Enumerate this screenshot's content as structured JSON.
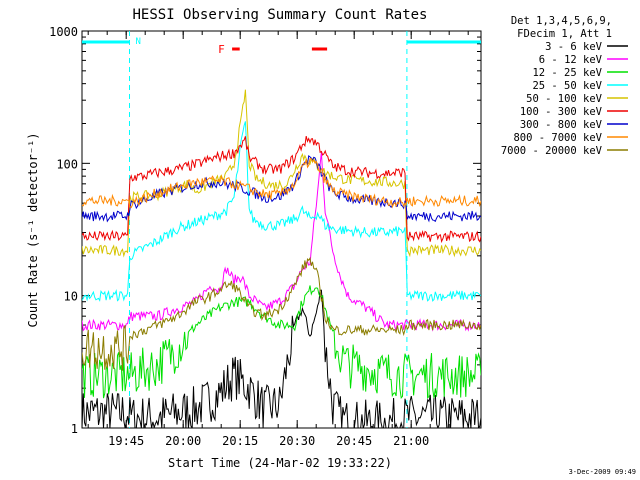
{
  "chart_data": {
    "type": "line",
    "title": "HESSI Observing Summary Count Rates",
    "xlabel": "Start Time (24-Mar-02 19:33:22)",
    "ylabel": "Count Rate (s⁻¹ detector⁻¹)",
    "yscale": "log",
    "ylim": [
      1,
      1000
    ],
    "xlim": [
      0,
      105
    ],
    "x_units": "minutes after 19:33:22",
    "x_tick_labels": [
      "19:45",
      "20:00",
      "20:15",
      "20:30",
      "20:45",
      "21:00"
    ],
    "x_tick_minutes": [
      11.63,
      26.63,
      41.63,
      56.63,
      71.63,
      86.63
    ],
    "y_tick_labels": [
      "1",
      "10",
      "100",
      "1000"
    ],
    "legend_header": [
      "Det 1,3,4,5,6,9,",
      "FDecim 1, Att 1"
    ],
    "legend_position": "right",
    "annotations": {
      "night_label": "N",
      "flare_label": "F",
      "date_stamp": "3-Dec-2009 09:49"
    },
    "night_intervals": [
      [
        0,
        12.5
      ],
      [
        85.5,
        105
      ]
    ],
    "flare_bars": [
      [
        39.5,
        41.5
      ],
      [
        60.5,
        64.5
      ]
    ],
    "series": [
      {
        "name": "3 - 6 keV",
        "color": "#000000",
        "x": [
          0,
          12,
          12.6,
          20,
          30,
          36,
          40,
          44,
          48,
          52,
          54,
          56,
          58,
          60,
          62,
          63,
          64,
          66,
          68,
          70,
          80,
          86,
          100,
          105
        ],
        "y": [
          1.3,
          1.3,
          1.2,
          1.2,
          1.4,
          1.8,
          2.5,
          2,
          1.4,
          1.5,
          3,
          6,
          8,
          5,
          8,
          12,
          4,
          1.5,
          1.2,
          1.1,
          1.1,
          1.2,
          1.2,
          1.2
        ]
      },
      {
        "name": "6 - 12 keV",
        "color": "#ff00ff",
        "x": [
          0,
          12,
          12.6,
          20,
          25,
          30,
          34,
          36,
          38,
          40,
          42,
          44,
          48,
          52,
          56,
          58,
          60,
          62,
          63,
          64,
          66,
          68,
          70,
          75,
          80,
          85,
          85.6,
          100,
          105
        ],
        "y": [
          6,
          6,
          7,
          7,
          8,
          9,
          12,
          11,
          16,
          13,
          14,
          10,
          8,
          9,
          12,
          16,
          18,
          60,
          120,
          45,
          22,
          14,
          10,
          8,
          6,
          6,
          6,
          6,
          6
        ]
      },
      {
        "name": "12 - 25 keV",
        "color": "#00e000",
        "x": [
          0,
          12,
          12.6,
          20,
          25,
          30,
          36,
          40,
          44,
          48,
          52,
          56,
          58,
          60,
          62,
          64,
          66,
          68,
          70,
          75,
          80,
          85,
          85.6,
          100,
          105
        ],
        "y": [
          2.5,
          2.5,
          2.5,
          3,
          4,
          6,
          8,
          9,
          9,
          7,
          6,
          6,
          9,
          11,
          12,
          8,
          5,
          3.5,
          3,
          2.8,
          2.6,
          2.5,
          2.5,
          2.5,
          2.5
        ]
      },
      {
        "name": "25 - 50 keV",
        "color": "#00ffff",
        "x": [
          0,
          12,
          12.6,
          20,
          25,
          30,
          35,
          38,
          40,
          42,
          43,
          44,
          45,
          48,
          52,
          56,
          58,
          60,
          62,
          64,
          66,
          70,
          75,
          80,
          85,
          85.6,
          100,
          105
        ],
        "y": [
          10,
          10,
          20,
          26,
          32,
          36,
          40,
          44,
          55,
          150,
          200,
          45,
          38,
          34,
          34,
          38,
          44,
          38,
          42,
          34,
          32,
          31,
          30,
          30,
          31,
          10,
          10,
          10
        ]
      },
      {
        "name": "50 - 100 keV",
        "color": "#d6c400",
        "x": [
          0,
          12,
          12.6,
          20,
          25,
          28,
          30,
          34,
          38,
          40,
          42,
          43,
          44,
          46,
          50,
          54,
          56,
          58,
          60,
          62,
          64,
          66,
          70,
          80,
          85,
          85.6,
          100,
          105
        ],
        "y": [
          22,
          22,
          55,
          58,
          65,
          70,
          62,
          70,
          80,
          100,
          220,
          350,
          100,
          75,
          68,
          70,
          90,
          115,
          105,
          95,
          85,
          80,
          75,
          72,
          70,
          22,
          22,
          22
        ]
      },
      {
        "name": "100 - 300 keV",
        "color": "#ee0000",
        "x": [
          0,
          12,
          12.6,
          16,
          20,
          25,
          30,
          35,
          40,
          42,
          43,
          44,
          45,
          48,
          52,
          56,
          58,
          60,
          62,
          64,
          66,
          70,
          75,
          80,
          85,
          85.6,
          100,
          105
        ],
        "y": [
          28,
          28,
          78,
          80,
          85,
          90,
          98,
          110,
          120,
          140,
          150,
          110,
          105,
          90,
          90,
          110,
          140,
          155,
          140,
          115,
          95,
          88,
          85,
          84,
          86,
          28,
          28,
          28
        ]
      },
      {
        "name": "300 - 800 keV",
        "color": "#0000cc",
        "x": [
          0,
          12,
          12.6,
          16,
          20,
          25,
          30,
          35,
          40,
          44,
          48,
          52,
          56,
          58,
          60,
          62,
          64,
          66,
          70,
          75,
          80,
          85,
          85.6,
          100,
          105
        ],
        "y": [
          40,
          40,
          48,
          52,
          58,
          64,
          70,
          72,
          68,
          62,
          55,
          56,
          70,
          95,
          110,
          98,
          75,
          60,
          55,
          52,
          51,
          50,
          40,
          40,
          40
        ]
      },
      {
        "name": "800 - 7000 keV",
        "color": "#ff8800",
        "x": [
          0,
          12,
          12.6,
          16,
          20,
          25,
          30,
          35,
          40,
          44,
          48,
          52,
          56,
          58,
          60,
          62,
          64,
          66,
          70,
          75,
          80,
          85,
          85.6,
          100,
          105
        ],
        "y": [
          52,
          52,
          50,
          54,
          60,
          66,
          72,
          74,
          70,
          64,
          58,
          58,
          70,
          92,
          105,
          95,
          75,
          62,
          57,
          54,
          52,
          50,
          52,
          52,
          52
        ]
      },
      {
        "name": "7000 - 20000 keV",
        "color": "#8b7d00",
        "x": [
          0,
          12,
          12.6,
          20,
          25,
          30,
          34,
          36,
          38,
          40,
          42,
          44,
          48,
          52,
          56,
          58,
          60,
          62,
          64,
          66,
          68,
          70,
          75,
          80,
          85,
          85.6,
          100,
          105
        ],
        "y": [
          4,
          4,
          5,
          6,
          7,
          9,
          10,
          11,
          12,
          12,
          10,
          8,
          7,
          8,
          12,
          16,
          19,
          14,
          7,
          5.5,
          5.5,
          5.5,
          5.5,
          5.5,
          5.5,
          6,
          6,
          6
        ]
      }
    ]
  }
}
